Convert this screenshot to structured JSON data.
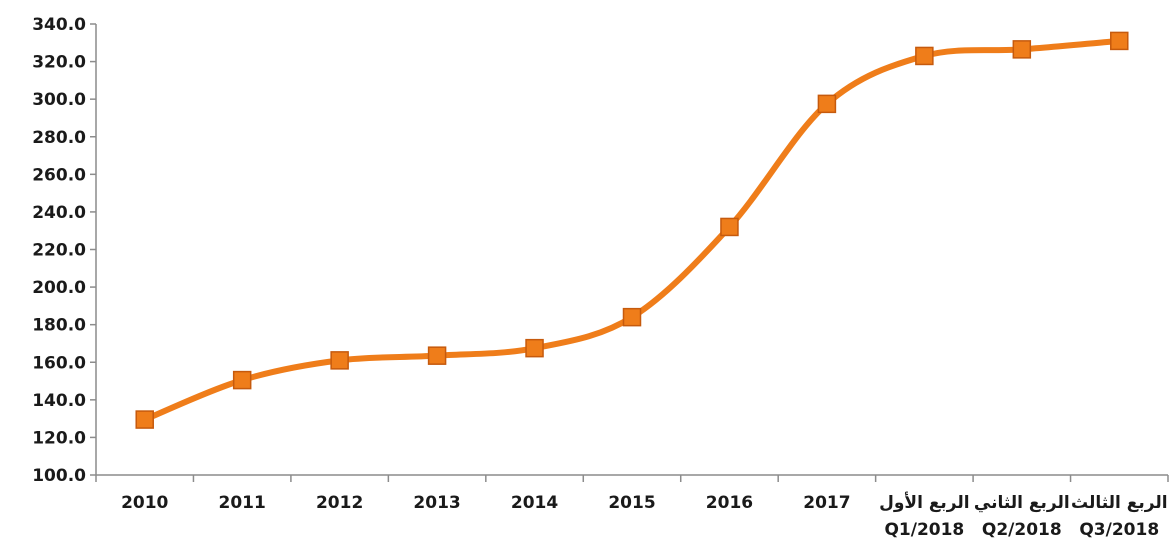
{
  "chart_data": {
    "type": "line",
    "title": "",
    "xlabel": "",
    "ylabel": "",
    "ylim": [
      100,
      340
    ],
    "y_ticks": [
      "100.0",
      "120.0",
      "140.0",
      "160.0",
      "180.0",
      "200.0",
      "220.0",
      "240.0",
      "260.0",
      "280.0",
      "300.0",
      "320.0",
      "340.0"
    ],
    "categories": [
      [
        "2010"
      ],
      [
        "2011"
      ],
      [
        "2012"
      ],
      [
        "2013"
      ],
      [
        "2014"
      ],
      [
        "2015"
      ],
      [
        "2016"
      ],
      [
        "2017"
      ],
      [
        "الربع الأول",
        "Q1/2018"
      ],
      [
        "الربع الثاني",
        "Q2/2018"
      ],
      [
        "الربع الثالث",
        "Q3/2018"
      ]
    ],
    "series": [
      {
        "values": [
          129.5,
          150.5,
          161,
          163.5,
          167.5,
          184,
          232,
          297.5,
          323,
          326.5,
          331
        ]
      }
    ],
    "colors": {
      "line": "#ef7d1a",
      "marker": "#ef7d1a",
      "axis": "#8c8c8c",
      "text": "#1a1a1a"
    },
    "smooth": true,
    "grid": false,
    "legend": "none"
  }
}
